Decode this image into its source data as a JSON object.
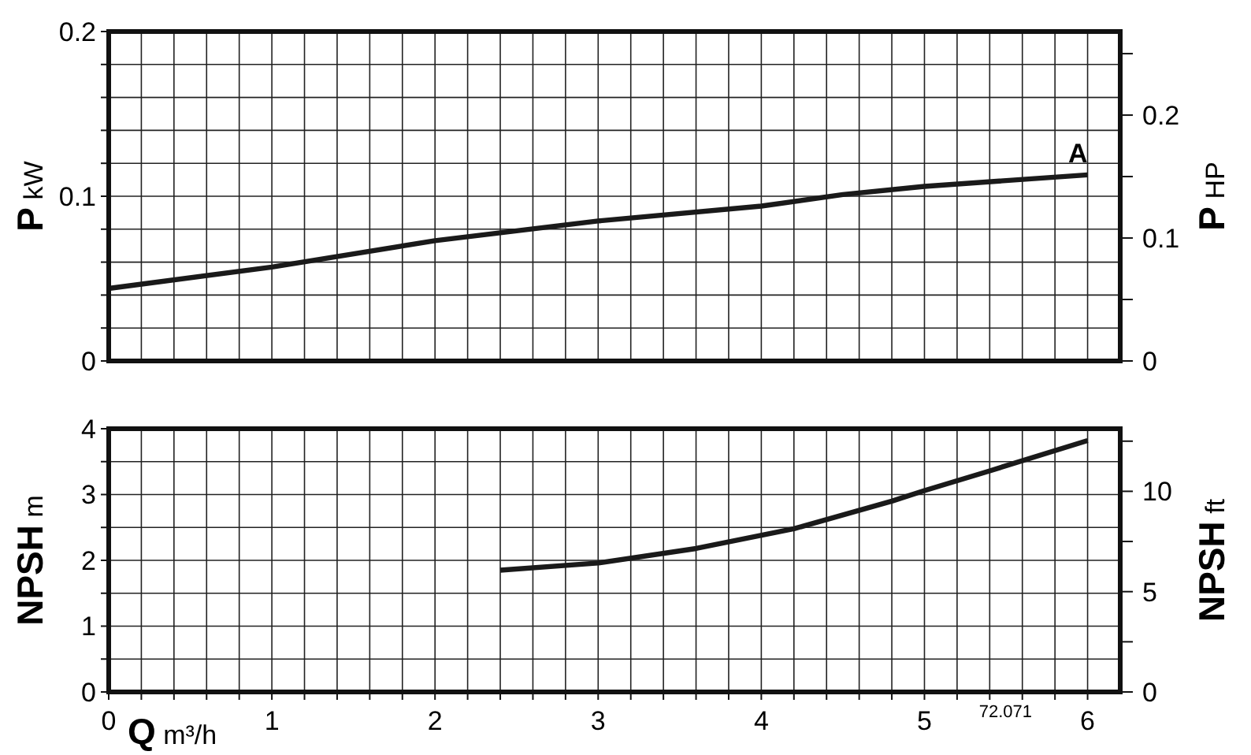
{
  "chart_data": [
    {
      "type": "line",
      "ylabel": "P kW",
      "y2label": "P HP",
      "xlim": [
        0,
        6.2
      ],
      "ylim": [
        0,
        0.2
      ],
      "y2lim": [
        0,
        0.268
      ],
      "xticks": [
        {
          "value": 0,
          "label": null
        },
        {
          "value": 0.2,
          "label": null
        },
        {
          "value": 0.4,
          "label": null
        },
        {
          "value": 0.6,
          "label": null
        },
        {
          "value": 0.8,
          "label": null
        },
        {
          "value": 1,
          "label": null
        },
        {
          "value": 1.2,
          "label": null
        },
        {
          "value": 1.4,
          "label": null
        },
        {
          "value": 1.6,
          "label": null
        },
        {
          "value": 1.8,
          "label": null
        },
        {
          "value": 2,
          "label": null
        },
        {
          "value": 2.2,
          "label": null
        },
        {
          "value": 2.4,
          "label": null
        },
        {
          "value": 2.6,
          "label": null
        },
        {
          "value": 2.8,
          "label": null
        },
        {
          "value": 3,
          "label": null
        },
        {
          "value": 3.2,
          "label": null
        },
        {
          "value": 3.4,
          "label": null
        },
        {
          "value": 3.6,
          "label": null
        },
        {
          "value": 3.8,
          "label": null
        },
        {
          "value": 4,
          "label": null
        },
        {
          "value": 4.2,
          "label": null
        },
        {
          "value": 4.4,
          "label": null
        },
        {
          "value": 4.6,
          "label": null
        },
        {
          "value": 4.8,
          "label": null
        },
        {
          "value": 5,
          "label": null
        },
        {
          "value": 5.2,
          "label": null
        },
        {
          "value": 5.4,
          "label": null
        },
        {
          "value": 5.6,
          "label": null
        },
        {
          "value": 5.8,
          "label": null
        },
        {
          "value": 6,
          "label": null
        }
      ],
      "yticks": [
        {
          "value": 0,
          "label": "0"
        },
        {
          "value": 0.02,
          "label": null
        },
        {
          "value": 0.04,
          "label": null
        },
        {
          "value": 0.06,
          "label": null
        },
        {
          "value": 0.08,
          "label": null
        },
        {
          "value": 0.1,
          "label": "0.1"
        },
        {
          "value": 0.12,
          "label": null
        },
        {
          "value": 0.14,
          "label": null
        },
        {
          "value": 0.16,
          "label": null
        },
        {
          "value": 0.18,
          "label": null
        },
        {
          "value": 0.2,
          "label": "0.2"
        }
      ],
      "y2ticks": [
        {
          "value": 0,
          "label": "0"
        },
        {
          "value": 0.05,
          "label": null
        },
        {
          "value": 0.1,
          "label": "0.1"
        },
        {
          "value": 0.15,
          "label": null
        },
        {
          "value": 0.2,
          "label": "0.2"
        },
        {
          "value": 0.25,
          "label": null
        }
      ],
      "grid": true,
      "tick_labels": "y",
      "line_style": "solid",
      "marker": "none",
      "series": [
        {
          "color": "#1a1a1a",
          "x": [
            0,
            1,
            2,
            3,
            4,
            4.5,
            5,
            6
          ],
          "values": [
            0.044,
            0.057,
            0.073,
            0.085,
            0.094,
            0.101,
            0.106,
            0.113
          ]
        }
      ],
      "annotations": [
        {
          "text": "A",
          "x": 6,
          "y": 0.113
        }
      ]
    },
    {
      "type": "line",
      "ylabel": "NPSH m",
      "y2label": "NPSH ft",
      "xlabel": "Q m³/h",
      "xlim": [
        0,
        6.2
      ],
      "ylim": [
        0,
        4
      ],
      "y2lim": [
        0,
        13.12
      ],
      "xticks": [
        0,
        {
          "value": 0.2,
          "label": null
        },
        {
          "value": 0.4,
          "label": null
        },
        {
          "value": 0.6,
          "label": null
        },
        {
          "value": 0.8,
          "label": null
        },
        1,
        {
          "value": 1.2,
          "label": null
        },
        {
          "value": 1.4,
          "label": null
        },
        {
          "value": 1.6,
          "label": null
        },
        {
          "value": 1.8,
          "label": null
        },
        2,
        {
          "value": 2.2,
          "label": null
        },
        {
          "value": 2.4,
          "label": null
        },
        {
          "value": 2.6,
          "label": null
        },
        {
          "value": 2.8,
          "label": null
        },
        3,
        {
          "value": 3.2,
          "label": null
        },
        {
          "value": 3.4,
          "label": null
        },
        {
          "value": 3.6,
          "label": null
        },
        {
          "value": 3.8,
          "label": null
        },
        4,
        {
          "value": 4.2,
          "label": null
        },
        {
          "value": 4.4,
          "label": null
        },
        {
          "value": 4.6,
          "label": null
        },
        {
          "value": 4.8,
          "label": null
        },
        5,
        {
          "value": 5.2,
          "label": null
        },
        {
          "value": 5.4,
          "label": null
        },
        {
          "value": 5.6,
          "label": null
        },
        {
          "value": 5.8,
          "label": null
        },
        6
      ],
      "yticks": [
        0,
        {
          "value": 0.5,
          "label": null
        },
        1,
        {
          "value": 1.5,
          "label": null
        },
        2,
        {
          "value": 2.5,
          "label": null
        },
        3,
        {
          "value": 3.5,
          "label": null
        },
        4
      ],
      "y2ticks": [
        0,
        {
          "value": 2.5,
          "label": null
        },
        5,
        {
          "value": 7.5,
          "label": null
        },
        10,
        {
          "value": 12.5,
          "label": null
        }
      ],
      "grid": true,
      "line_style": "solid",
      "marker": "none",
      "series": [
        {
          "color": "#1a1a1a",
          "x": [
            2.4,
            3,
            3.6,
            4.2,
            4.8,
            5,
            5.4,
            6
          ],
          "values": [
            1.85,
            1.96,
            2.18,
            2.48,
            2.9,
            3.06,
            3.36,
            3.82
          ]
        }
      ],
      "annotations": [
        "72.071"
      ]
    }
  ]
}
